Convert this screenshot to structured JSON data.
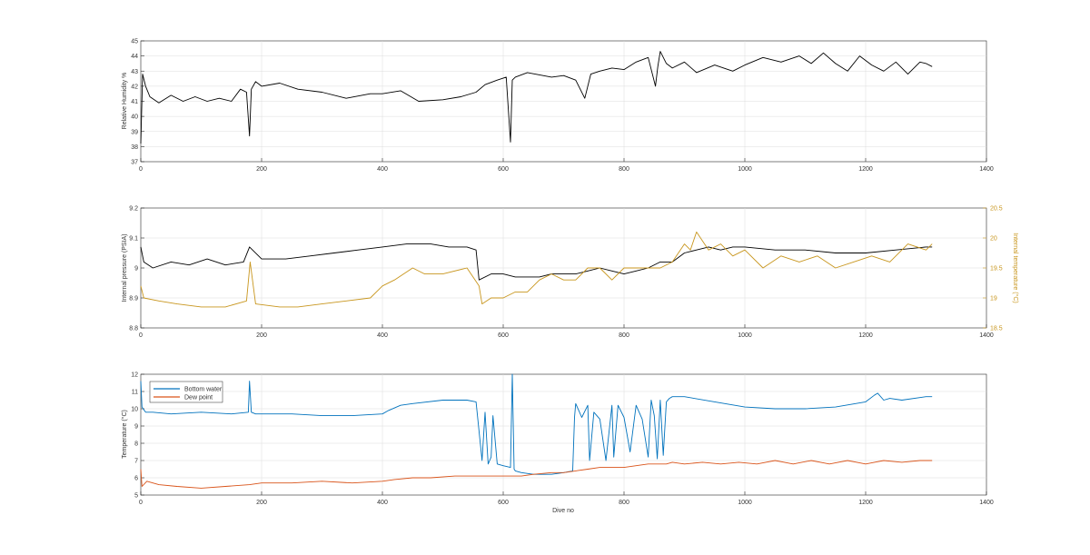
{
  "chart_data": [
    {
      "type": "line",
      "ylabel": "Relative Humidity %",
      "xlabel": "",
      "xlim": [
        0,
        1400
      ],
      "ylim": [
        37,
        45
      ],
      "xticks": [
        "0",
        "200",
        "400",
        "600",
        "800",
        "1000",
        "1200",
        "1400"
      ],
      "yticks": [
        "37",
        "38",
        "39",
        "40",
        "41",
        "42",
        "43",
        "44",
        "45"
      ],
      "grid": true,
      "series": [
        {
          "color": "#000000",
          "x": [
            0,
            3,
            8,
            15,
            30,
            50,
            70,
            90,
            110,
            130,
            150,
            165,
            175,
            180,
            183,
            190,
            200,
            230,
            260,
            300,
            340,
            380,
            400,
            430,
            460,
            500,
            530,
            555,
            570,
            590,
            605,
            612,
            615,
            620,
            640,
            680,
            700,
            720,
            735,
            745,
            760,
            780,
            800,
            820,
            840,
            852,
            856,
            860,
            870,
            880,
            900,
            920,
            950,
            980,
            1000,
            1030,
            1060,
            1090,
            1110,
            1130,
            1150,
            1170,
            1190,
            1210,
            1230,
            1250,
            1270,
            1290,
            1300,
            1310
          ],
          "y": [
            38.2,
            42.8,
            42.0,
            41.3,
            40.9,
            41.4,
            41.0,
            41.3,
            41.0,
            41.2,
            41.0,
            41.8,
            41.6,
            38.7,
            41.8,
            42.3,
            42.0,
            42.2,
            41.8,
            41.6,
            41.2,
            41.5,
            41.5,
            41.7,
            41.0,
            41.1,
            41.3,
            41.6,
            42.1,
            42.4,
            42.6,
            38.3,
            42.4,
            42.6,
            42.9,
            42.6,
            42.7,
            42.4,
            41.2,
            42.8,
            43.0,
            43.2,
            43.1,
            43.6,
            43.9,
            42.0,
            43.3,
            44.3,
            43.5,
            43.2,
            43.6,
            42.9,
            43.4,
            43.0,
            43.4,
            43.9,
            43.6,
            44.0,
            43.5,
            44.2,
            43.5,
            43.0,
            44.0,
            43.4,
            43.0,
            43.6,
            42.8,
            43.6,
            43.5,
            43.3
          ]
        }
      ]
    },
    {
      "type": "line",
      "ylabel": "Internal pressure (PSIA)",
      "ylabel_right": "Internal temperature (°C)",
      "xlabel": "",
      "xlim": [
        0,
        1400
      ],
      "ylim": [
        8.8,
        9.2
      ],
      "ylim_right": [
        18.5,
        20.5
      ],
      "xticks": [
        "0",
        "200",
        "400",
        "600",
        "800",
        "1000",
        "1200",
        "1400"
      ],
      "yticks": [
        "8.8",
        "8.9",
        "9",
        "9.1",
        "9.2"
      ],
      "yticks_right": [
        "18.5",
        "19",
        "19.5",
        "20",
        "20.5"
      ],
      "grid": true,
      "series": [
        {
          "axis": "left",
          "color": "#000000",
          "x": [
            0,
            5,
            20,
            50,
            80,
            110,
            140,
            170,
            180,
            200,
            240,
            280,
            320,
            360,
            400,
            440,
            480,
            510,
            540,
            555,
            560,
            580,
            600,
            620,
            640,
            660,
            680,
            700,
            720,
            740,
            760,
            780,
            800,
            820,
            840,
            860,
            880,
            900,
            920,
            940,
            960,
            980,
            1000,
            1050,
            1100,
            1150,
            1200,
            1250,
            1300,
            1310
          ],
          "y": [
            9.07,
            9.02,
            9.0,
            9.02,
            9.01,
            9.03,
            9.01,
            9.02,
            9.07,
            9.03,
            9.03,
            9.04,
            9.05,
            9.06,
            9.07,
            9.08,
            9.08,
            9.07,
            9.07,
            9.06,
            8.96,
            8.98,
            8.98,
            8.97,
            8.97,
            8.97,
            8.98,
            8.98,
            8.98,
            8.99,
            9.0,
            8.99,
            8.98,
            8.99,
            9.0,
            9.02,
            9.02,
            9.05,
            9.06,
            9.07,
            9.06,
            9.07,
            9.07,
            9.06,
            9.06,
            9.05,
            9.05,
            9.06,
            9.07,
            9.07
          ]
        },
        {
          "axis": "right",
          "color": "#C8961E",
          "x": [
            0,
            5,
            30,
            60,
            100,
            140,
            175,
            181,
            190,
            230,
            260,
            300,
            340,
            380,
            400,
            420,
            450,
            470,
            500,
            540,
            560,
            565,
            580,
            600,
            620,
            640,
            660,
            680,
            700,
            720,
            740,
            760,
            780,
            800,
            820,
            840,
            860,
            880,
            900,
            910,
            920,
            940,
            960,
            980,
            1000,
            1030,
            1060,
            1090,
            1120,
            1150,
            1180,
            1210,
            1240,
            1270,
            1300,
            1310
          ],
          "y": [
            19.2,
            19.0,
            18.95,
            18.9,
            18.85,
            18.85,
            18.95,
            19.6,
            18.9,
            18.85,
            18.85,
            18.9,
            18.95,
            19.0,
            19.2,
            19.3,
            19.5,
            19.4,
            19.4,
            19.5,
            19.2,
            18.9,
            19.0,
            19.0,
            19.1,
            19.1,
            19.3,
            19.4,
            19.3,
            19.3,
            19.5,
            19.5,
            19.3,
            19.5,
            19.5,
            19.5,
            19.5,
            19.6,
            19.9,
            19.8,
            20.1,
            19.8,
            19.9,
            19.7,
            19.8,
            19.5,
            19.7,
            19.6,
            19.7,
            19.5,
            19.6,
            19.7,
            19.6,
            19.9,
            19.8,
            19.9
          ]
        }
      ]
    },
    {
      "type": "line",
      "ylabel": "Temperature (°C)",
      "xlabel": "Dive no",
      "xlim": [
        0,
        1400
      ],
      "ylim": [
        5,
        12
      ],
      "xticks": [
        "0",
        "200",
        "400",
        "600",
        "800",
        "1000",
        "1200",
        "1400"
      ],
      "yticks": [
        "5",
        "6",
        "7",
        "8",
        "9",
        "10",
        "11",
        "12"
      ],
      "grid": true,
      "legend": "top-left",
      "series": [
        {
          "name": "Bottom water",
          "color": "#0072BD",
          "x": [
            0,
            2,
            8,
            20,
            50,
            100,
            150,
            178,
            180,
            183,
            190,
            250,
            300,
            350,
            400,
            410,
            430,
            450,
            500,
            540,
            555,
            565,
            570,
            575,
            580,
            583,
            590,
            600,
            612,
            615,
            618,
            620,
            630,
            650,
            680,
            700,
            715,
            718,
            720,
            730,
            740,
            743,
            750,
            760,
            770,
            780,
            783,
            790,
            800,
            810,
            820,
            830,
            840,
            845,
            850,
            855,
            860,
            865,
            870,
            875,
            880,
            900,
            950,
            1000,
            1050,
            1100,
            1150,
            1200,
            1215,
            1220,
            1230,
            1240,
            1260,
            1300,
            1310
          ],
          "y": [
            11.6,
            10.1,
            9.8,
            9.8,
            9.7,
            9.8,
            9.7,
            9.8,
            11.6,
            9.8,
            9.7,
            9.7,
            9.6,
            9.6,
            9.7,
            9.9,
            10.2,
            10.3,
            10.5,
            10.5,
            10.4,
            7.0,
            9.8,
            6.8,
            7.2,
            9.6,
            6.8,
            6.7,
            6.6,
            12.0,
            6.5,
            6.4,
            6.3,
            6.2,
            6.2,
            6.3,
            6.4,
            9.5,
            10.3,
            9.5,
            10.2,
            7.0,
            9.8,
            9.4,
            7.0,
            10.2,
            7.2,
            10.2,
            9.5,
            7.5,
            10.2,
            9.4,
            7.2,
            10.5,
            9.6,
            7.1,
            10.5,
            7.3,
            10.4,
            10.6,
            10.7,
            10.7,
            10.4,
            10.1,
            10.0,
            10.0,
            10.1,
            10.4,
            10.8,
            10.9,
            10.5,
            10.6,
            10.5,
            10.7,
            10.7
          ]
        },
        {
          "name": "Dew point",
          "color": "#D95319",
          "x": [
            0,
            2,
            10,
            30,
            60,
            100,
            140,
            180,
            200,
            250,
            300,
            350,
            400,
            420,
            450,
            480,
            520,
            550,
            580,
            600,
            630,
            650,
            680,
            700,
            720,
            740,
            760,
            780,
            800,
            820,
            840,
            860,
            870,
            880,
            900,
            930,
            960,
            990,
            1020,
            1050,
            1080,
            1110,
            1140,
            1170,
            1200,
            1230,
            1260,
            1290,
            1310
          ],
          "y": [
            6.5,
            5.5,
            5.8,
            5.6,
            5.5,
            5.4,
            5.5,
            5.6,
            5.7,
            5.7,
            5.8,
            5.7,
            5.8,
            5.9,
            6.0,
            6.0,
            6.1,
            6.1,
            6.1,
            6.1,
            6.1,
            6.2,
            6.3,
            6.3,
            6.4,
            6.5,
            6.6,
            6.6,
            6.6,
            6.7,
            6.8,
            6.8,
            6.8,
            6.9,
            6.8,
            6.9,
            6.8,
            6.9,
            6.8,
            7.0,
            6.8,
            7.0,
            6.8,
            7.0,
            6.8,
            7.0,
            6.9,
            7.0,
            7.0
          ]
        }
      ]
    }
  ]
}
